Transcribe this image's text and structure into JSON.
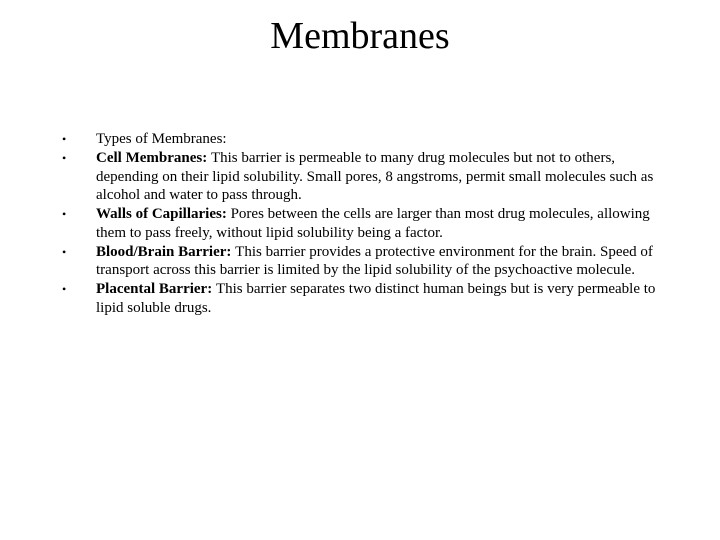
{
  "title": "Membranes",
  "bullets": [
    {
      "lead": "",
      "text": "Types of Membranes:"
    },
    {
      "lead": "Cell Membranes: ",
      "text": "This barrier is permeable to many drug molecules but not to others, depending on their lipid solubility. Small pores, 8 angstroms, permit small molecules such as alcohol and water to pass through."
    },
    {
      "lead": "Walls of Capillaries: ",
      "text": "Pores between the cells are larger than most drug molecules, allowing them to pass freely, without lipid solubility being a factor."
    },
    {
      "lead": "Blood/Brain Barrier: ",
      "text": "This barrier provides a protective environment for the brain. Speed of transport across this barrier is limited by the lipid solubility of the psychoactive molecule."
    },
    {
      "lead": "Placental Barrier: ",
      "text": "This barrier separates two distinct human beings but is very permeable to lipid soluble drugs."
    }
  ]
}
